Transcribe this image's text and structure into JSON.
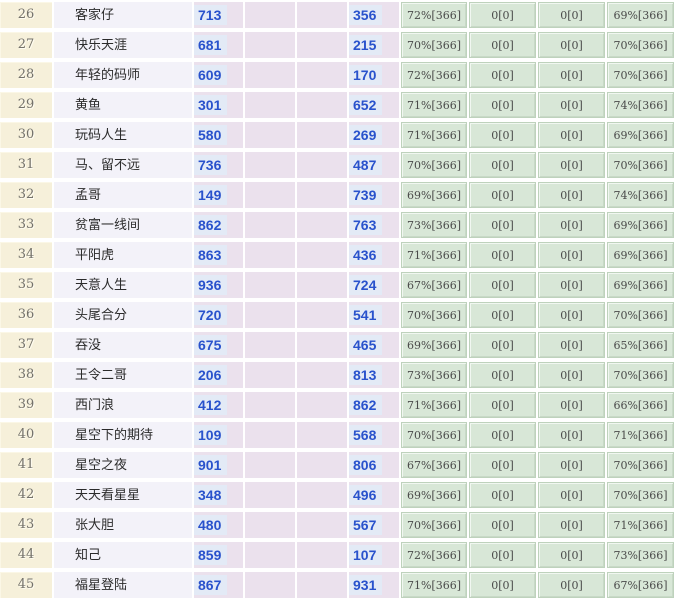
{
  "table": {
    "description": "ranking-table",
    "columns": {
      "rank": "rank",
      "name": "player-name",
      "num1": "count-1",
      "num2": "count-2",
      "stat1": "percent-stat-1",
      "stat2": "zero-stat-1",
      "stat3": "zero-stat-2",
      "stat4": "percent-stat-2"
    },
    "rows": [
      {
        "rank": "26",
        "name": "客家仔",
        "num1": "713",
        "num2": "356",
        "stat1": "72%[366]",
        "stat2": "0[0]",
        "stat3": "0[0]",
        "stat4": "69%[366]"
      },
      {
        "rank": "27",
        "name": "快乐天涯",
        "num1": "681",
        "num2": "215",
        "stat1": "70%[366]",
        "stat2": "0[0]",
        "stat3": "0[0]",
        "stat4": "70%[366]"
      },
      {
        "rank": "28",
        "name": "年轻的码师",
        "num1": "609",
        "num2": "170",
        "stat1": "72%[366]",
        "stat2": "0[0]",
        "stat3": "0[0]",
        "stat4": "70%[366]"
      },
      {
        "rank": "29",
        "name": "黄鱼",
        "num1": "301",
        "num2": "652",
        "stat1": "71%[366]",
        "stat2": "0[0]",
        "stat3": "0[0]",
        "stat4": "74%[366]"
      },
      {
        "rank": "30",
        "name": "玩码人生",
        "num1": "580",
        "num2": "269",
        "stat1": "71%[366]",
        "stat2": "0[0]",
        "stat3": "0[0]",
        "stat4": "69%[366]"
      },
      {
        "rank": "31",
        "name": "马、留不远",
        "num1": "736",
        "num2": "487",
        "stat1": "70%[366]",
        "stat2": "0[0]",
        "stat3": "0[0]",
        "stat4": "70%[366]"
      },
      {
        "rank": "32",
        "name": "孟哥",
        "num1": "149",
        "num2": "739",
        "stat1": "69%[366]",
        "stat2": "0[0]",
        "stat3": "0[0]",
        "stat4": "74%[366]"
      },
      {
        "rank": "33",
        "name": "贫富一线间",
        "num1": "862",
        "num2": "763",
        "stat1": "73%[366]",
        "stat2": "0[0]",
        "stat3": "0[0]",
        "stat4": "69%[366]"
      },
      {
        "rank": "34",
        "name": "平阳虎",
        "num1": "863",
        "num2": "436",
        "stat1": "71%[366]",
        "stat2": "0[0]",
        "stat3": "0[0]",
        "stat4": "69%[366]"
      },
      {
        "rank": "35",
        "name": "天意人生",
        "num1": "936",
        "num2": "724",
        "stat1": "67%[366]",
        "stat2": "0[0]",
        "stat3": "0[0]",
        "stat4": "69%[366]"
      },
      {
        "rank": "36",
        "name": "头尾合分",
        "num1": "720",
        "num2": "541",
        "stat1": "70%[366]",
        "stat2": "0[0]",
        "stat3": "0[0]",
        "stat4": "70%[366]"
      },
      {
        "rank": "37",
        "name": "吞没",
        "num1": "675",
        "num2": "465",
        "stat1": "69%[366]",
        "stat2": "0[0]",
        "stat3": "0[0]",
        "stat4": "65%[366]"
      },
      {
        "rank": "38",
        "name": "王令二哥",
        "num1": "206",
        "num2": "813",
        "stat1": "73%[366]",
        "stat2": "0[0]",
        "stat3": "0[0]",
        "stat4": "70%[366]"
      },
      {
        "rank": "39",
        "name": "西门浪",
        "num1": "412",
        "num2": "862",
        "stat1": "71%[366]",
        "stat2": "0[0]",
        "stat3": "0[0]",
        "stat4": "66%[366]"
      },
      {
        "rank": "40",
        "name": "星空下的期待",
        "num1": "109",
        "num2": "568",
        "stat1": "70%[366]",
        "stat2": "0[0]",
        "stat3": "0[0]",
        "stat4": "71%[366]"
      },
      {
        "rank": "41",
        "name": "星空之夜",
        "num1": "901",
        "num2": "806",
        "stat1": "67%[366]",
        "stat2": "0[0]",
        "stat3": "0[0]",
        "stat4": "70%[366]"
      },
      {
        "rank": "42",
        "name": "天天看星星",
        "num1": "348",
        "num2": "496",
        "stat1": "69%[366]",
        "stat2": "0[0]",
        "stat3": "0[0]",
        "stat4": "70%[366]"
      },
      {
        "rank": "43",
        "name": "张大胆",
        "num1": "480",
        "num2": "567",
        "stat1": "70%[366]",
        "stat2": "0[0]",
        "stat3": "0[0]",
        "stat4": "71%[366]"
      },
      {
        "rank": "44",
        "name": "知己",
        "num1": "859",
        "num2": "107",
        "stat1": "72%[366]",
        "stat2": "0[0]",
        "stat3": "0[0]",
        "stat4": "73%[366]"
      },
      {
        "rank": "45",
        "name": "福星登陆",
        "num1": "867",
        "num2": "931",
        "stat1": "71%[366]",
        "stat2": "0[0]",
        "stat3": "0[0]",
        "stat4": "67%[366]"
      }
    ]
  },
  "colors": {
    "rank_bg": "#f6f0da",
    "name_bg": "#f3f2f9",
    "pink_bg": "#ebe1ed",
    "number_highlight_bg": "#e3eaf6",
    "number_text": "#2952cc",
    "green_bg": "#d8e7d7",
    "green_border": "#bed2bc",
    "green_text": "#4a4a4a"
  }
}
